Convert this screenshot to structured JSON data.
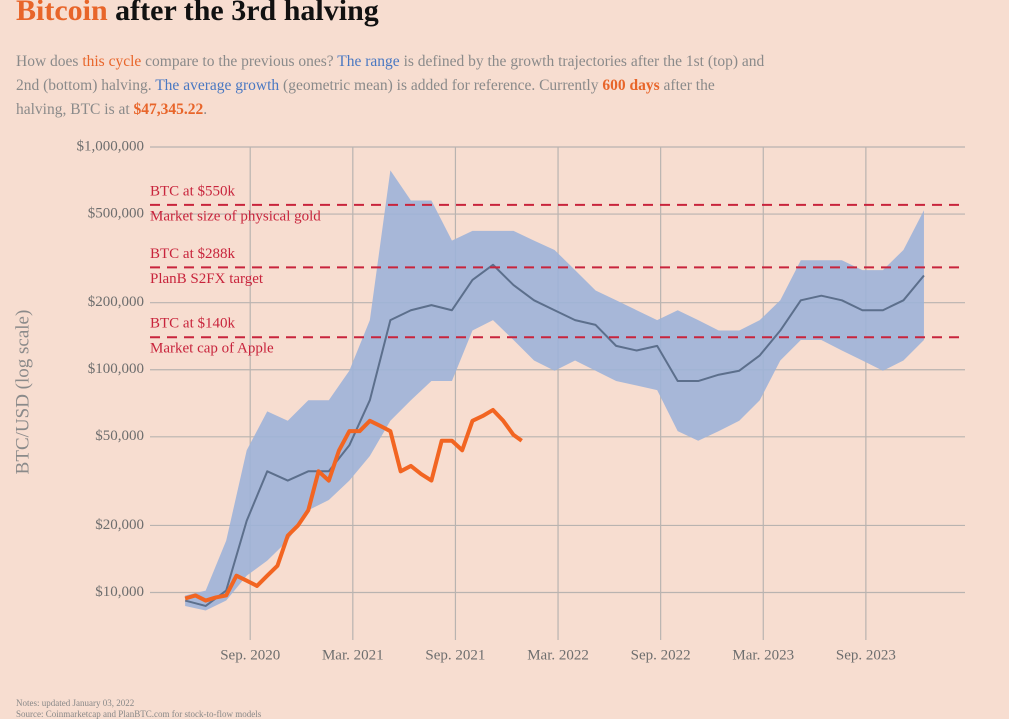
{
  "chart_data": {
    "type": "line",
    "title": {
      "highlight": "Bitcoin",
      "highlight_color": "#e8652a",
      "rest": "after the 3rd halving"
    },
    "subtitle": [
      {
        "text": "How does "
      },
      {
        "text": "this cycle",
        "color": "#e8652a"
      },
      {
        "text": " compare to the previous ones? "
      },
      {
        "text": "The range",
        "color": "#4a78c2"
      },
      {
        "text": " is defined by the growth trajectories after the 1st (top) and 2nd (bottom) halving. "
      },
      {
        "text": "The average growth",
        "color": "#4a78c2"
      },
      {
        "text": " (geometric mean) is added for reference. Currently "
      },
      {
        "text": "600 days",
        "color": "#e8652a",
        "bold": true
      },
      {
        "text": " after the halving, BTC is at "
      },
      {
        "text": "$47,345.22",
        "color": "#e8652a",
        "bold": true
      },
      {
        "text": "."
      }
    ],
    "ylabel": "BTC/USD (log scale)",
    "log_y": true,
    "grid": true,
    "xlim": [
      2020.13,
      2024.15
    ],
    "xticks": [
      {
        "value": 2020.667,
        "label": "Sep. 2020"
      },
      {
        "value": 2021.167,
        "label": "Mar. 2021"
      },
      {
        "value": 2021.667,
        "label": "Sep. 2021"
      },
      {
        "value": 2022.167,
        "label": "Mar. 2022"
      },
      {
        "value": 2022.667,
        "label": "Sep. 2022"
      },
      {
        "value": 2023.167,
        "label": "Mar. 2023"
      },
      {
        "value": 2023.667,
        "label": "Sep. 2023"
      }
    ],
    "ylim": [
      7000,
      1000000
    ],
    "yticks": [
      {
        "value": 10000,
        "label": "$10,000"
      },
      {
        "value": 20000,
        "label": "$20,000"
      },
      {
        "value": 50000,
        "label": "$50,000"
      },
      {
        "value": 100000,
        "label": "$100,000"
      },
      {
        "value": 200000,
        "label": "$200,000"
      },
      {
        "value": 500000,
        "label": "$500,000"
      },
      {
        "value": 1000000,
        "label": "$1,000,000"
      }
    ],
    "reference_lines": {
      "color": "#c8243c",
      "items": [
        {
          "value": 550000,
          "label": "BTC at $550k",
          "note": "Market size of physical gold"
        },
        {
          "value": 288000,
          "label": "BTC at $288k",
          "note": "PlanB S2FX target"
        },
        {
          "value": 140000,
          "label": "BTC at $140k",
          "note": "Market cap of Apple"
        }
      ]
    },
    "series": [
      {
        "kind": "band",
        "color": "#9db2d8",
        "x": [
          2020.35,
          2020.45,
          2020.55,
          2020.65,
          2020.75,
          2020.85,
          2020.95,
          2021.05,
          2021.15,
          2021.25,
          2021.35,
          2021.45,
          2021.55,
          2021.65,
          2021.75,
          2021.85,
          2021.95,
          2022.05,
          2022.15,
          2022.25,
          2022.35,
          2022.45,
          2022.55,
          2022.65,
          2022.75,
          2022.85,
          2022.95,
          2023.05,
          2023.15,
          2023.25,
          2023.35,
          2023.45,
          2023.55,
          2023.65,
          2023.75,
          2023.85,
          2023.95
        ],
        "high": [
          9700,
          10200,
          17100,
          43500,
          65000,
          59000,
          73000,
          73000,
          99000,
          167000,
          785000,
          575000,
          575000,
          380000,
          420000,
          420000,
          420000,
          380000,
          345000,
          280000,
          227000,
          205000,
          185000,
          167000,
          185000,
          167000,
          150000,
          150000,
          167000,
          205000,
          310000,
          310000,
          310000,
          280000,
          280000,
          345000,
          520000
        ],
        "low": [
          8700,
          8300,
          9200,
          11900,
          13900,
          17100,
          23400,
          26000,
          31800,
          41000,
          59000,
          73000,
          89000,
          89000,
          150000,
          167000,
          136000,
          110000,
          99000,
          110000,
          99000,
          89000,
          85000,
          81000,
          53000,
          48000,
          53000,
          59000,
          73000,
          110000,
          136000,
          136000,
          122000,
          110000,
          99000,
          110000,
          136000
        ]
      },
      {
        "kind": "line",
        "color": "#5c6f8c",
        "width": 2,
        "x": [
          2020.35,
          2020.45,
          2020.55,
          2020.65,
          2020.75,
          2020.85,
          2020.95,
          2021.05,
          2021.15,
          2021.25,
          2021.35,
          2021.45,
          2021.55,
          2021.65,
          2021.75,
          2021.85,
          2021.95,
          2022.05,
          2022.15,
          2022.25,
          2022.35,
          2022.45,
          2022.55,
          2022.65,
          2022.75,
          2022.85,
          2022.95,
          2023.05,
          2023.15,
          2023.25,
          2023.35,
          2023.45,
          2023.55,
          2023.65,
          2023.75,
          2023.85,
          2023.95
        ],
        "values": [
          9200,
          8700,
          10200,
          21000,
          35000,
          31800,
          35000,
          35000,
          45800,
          73000,
          167000,
          185000,
          195000,
          185000,
          253000,
          296000,
          240000,
          205000,
          185000,
          167000,
          159000,
          128000,
          122000,
          128000,
          89000,
          89000,
          95000,
          99000,
          116000,
          150000,
          205000,
          215000,
          205000,
          185000,
          185000,
          205000,
          265000
        ]
      },
      {
        "kind": "line",
        "color": "#f26522",
        "width": 4,
        "x": [
          2020.35,
          2020.4,
          2020.45,
          2020.5,
          2020.55,
          2020.6,
          2020.65,
          2020.7,
          2020.75,
          2020.8,
          2020.85,
          2020.9,
          2020.95,
          2021.0,
          2021.05,
          2021.1,
          2021.15,
          2021.2,
          2021.25,
          2021.3,
          2021.35,
          2021.4,
          2021.45,
          2021.5,
          2021.55,
          2021.6,
          2021.65,
          2021.7,
          2021.75,
          2021.8,
          2021.85,
          2021.9,
          2021.95,
          2021.99
        ],
        "values": [
          9400,
          9700,
          9200,
          9500,
          9700,
          11900,
          11300,
          10700,
          11900,
          13200,
          18000,
          20000,
          23400,
          35000,
          31800,
          43500,
          53000,
          53000,
          59000,
          56000,
          53000,
          35000,
          37000,
          34000,
          31800,
          48000,
          48000,
          43500,
          59000,
          62000,
          66000,
          59000,
          51000,
          48000
        ]
      }
    ],
    "notes": [
      "Notes: updated January 03, 2022",
      "Source: Coinmarketcap and PlanBTC.com for stock-to-flow models"
    ]
  }
}
